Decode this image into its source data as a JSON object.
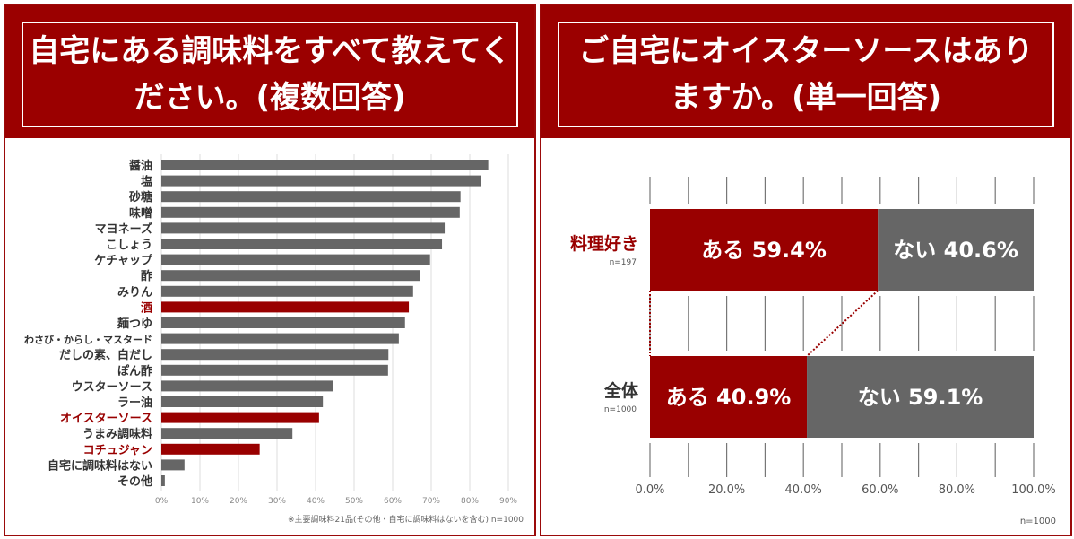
{
  "colors": {
    "accent": "#990000",
    "bar": "#666666",
    "grid": "#cccccc"
  },
  "left_panel": {
    "title": "自宅にある調味料をすべて教えてください。(複数回答)"
  },
  "right_panel": {
    "title": "ご自宅にオイスターソースはありますか。(単一回答)"
  },
  "chart_data": [
    {
      "type": "bar",
      "orientation": "horizontal",
      "categories": [
        "醤油",
        "塩",
        "砂糖",
        "味噌",
        "マヨネーズ",
        "こしょう",
        "ケチャップ",
        "酢",
        "みりん",
        "酒",
        "麺つゆ",
        "わさび・からし・マスタード",
        "だしの素、白だし",
        "ぽん酢",
        "ウスターソース",
        "ラー油",
        "オイスターソース",
        "うまみ調味料",
        "コチュジャン",
        "自宅に調味料はない",
        "その他"
      ],
      "values": [
        84.8,
        83.0,
        77.6,
        77.4,
        73.5,
        72.8,
        69.7,
        67.1,
        65.3,
        64.2,
        63.2,
        61.6,
        58.9,
        58.8,
        44.6,
        41.9,
        40.9,
        34.0,
        25.5,
        6.0,
        0.9
      ],
      "highlighted": [
        "酒",
        "オイスターソース",
        "コチュジャン"
      ],
      "xticks": [
        "0%",
        "10%",
        "20%",
        "30%",
        "40%",
        "50%",
        "60%",
        "70%",
        "80%",
        "90%"
      ],
      "xlim": [
        0,
        90
      ],
      "grid": true,
      "note": "※主要調味料21品(その他・自宅に調味料はないを含む) n=1000"
    },
    {
      "type": "bar",
      "orientation": "horizontal",
      "stacked": true,
      "categories": [
        {
          "label": "料理好き",
          "n": "n=197"
        },
        {
          "label": "全体",
          "n": "n=1000"
        }
      ],
      "series": [
        {
          "name": "ある",
          "values": [
            59.4,
            40.9
          ],
          "labels": [
            "ある 59.4%",
            "ある 40.9%"
          ]
        },
        {
          "name": "ない",
          "values": [
            40.6,
            59.1
          ],
          "labels": [
            "ない 40.6%",
            "ない 59.1%"
          ]
        }
      ],
      "xticks": [
        "0.0%",
        "20.0%",
        "40.0%",
        "60.0%",
        "80.0%",
        "100.0%"
      ],
      "xlim": [
        0,
        100
      ],
      "grid": true,
      "note": "n=1000"
    }
  ]
}
